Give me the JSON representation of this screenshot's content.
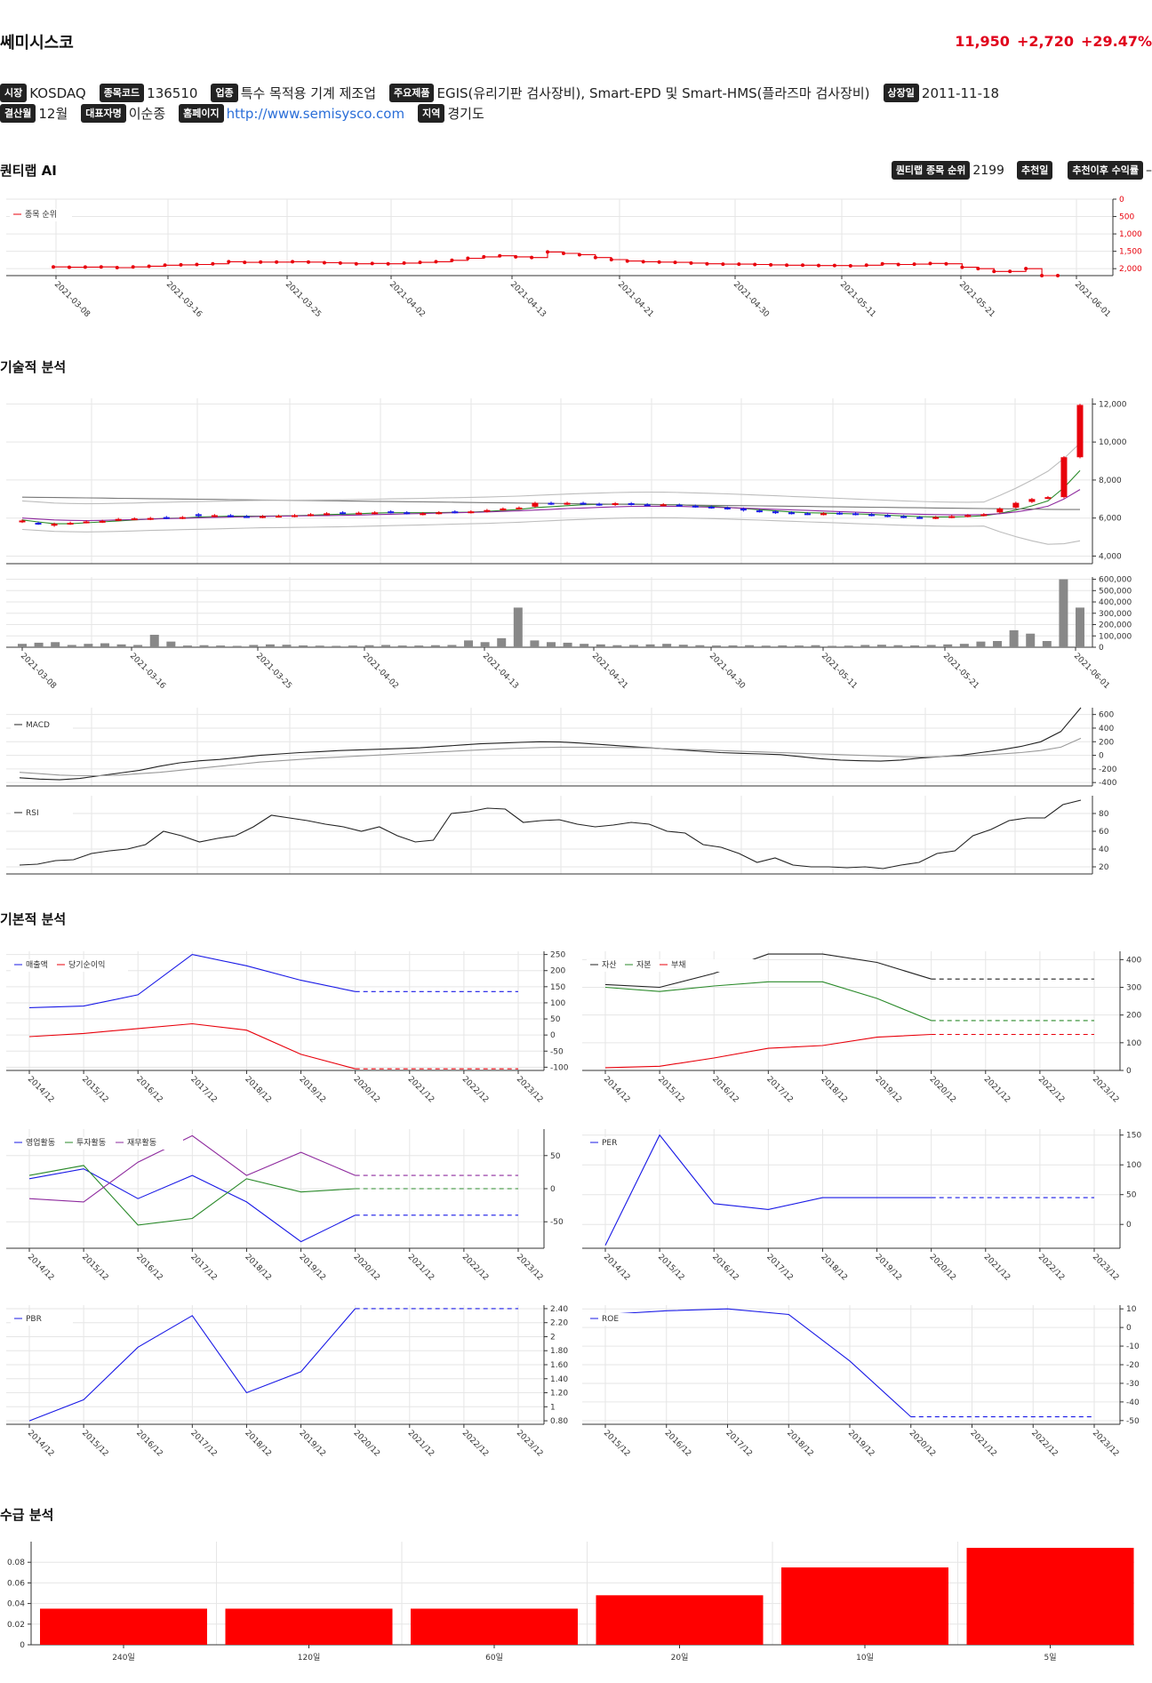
{
  "stock": {
    "name": "쎄미시스코",
    "price": "11,950",
    "change": "+2,720",
    "change_pct": "+29.47%"
  },
  "info": {
    "row1": [
      {
        "label": "시장",
        "value": "KOSDAQ"
      },
      {
        "label": "종목코드",
        "value": "136510"
      },
      {
        "label": "업종",
        "value": "특수 목적용 기계 제조업"
      },
      {
        "label": "주요제품",
        "value": "EGIS(유리기판 검사장비), Smart-EPD 및 Smart-HMS(플라즈마 검사장비)"
      },
      {
        "label": "상장일",
        "value": "2011-11-18"
      }
    ],
    "row2": [
      {
        "label": "결산월",
        "value": "12월"
      },
      {
        "label": "대표자명",
        "value": "이순종"
      },
      {
        "label": "홈페이지",
        "value": "http://www.semisysco.com",
        "link": true
      },
      {
        "label": "지역",
        "value": "경기도"
      }
    ]
  },
  "sections": {
    "ai": "퀀티랩 AI",
    "technical": "기술적 분석",
    "fundamental": "기본적 분석",
    "supply": "수급 분석"
  },
  "ai_bar": {
    "rank_label": "퀀티랩 종목 순위",
    "rank_value": "2199",
    "rec_date_label": "추천일",
    "rec_return_label": "추천이후 수익률",
    "rec_return_value": "–"
  },
  "colors": {
    "red": "#e8000b",
    "blue": "#1919e6",
    "green": "#2a8a2a",
    "purple": "#8e2a9e",
    "black": "#333333",
    "gray": "#777777"
  },
  "dates_axis": [
    "2021-03-08",
    "2021-03-16",
    "2021-03-25",
    "2021-04-02",
    "2021-04-13",
    "2021-04-21",
    "2021-04-30",
    "2021-05-11",
    "2021-05-21",
    "2021-06-01"
  ],
  "year_axis": [
    "2014/12",
    "2015/12",
    "2016/12",
    "2017/12",
    "2018/12",
    "2019/12",
    "2020/12",
    "2021/12",
    "2022/12",
    "2023/12"
  ],
  "year_axis_roe": [
    "2015/12",
    "2016/12",
    "2017/12",
    "2018/12",
    "2019/12",
    "2020/12",
    "2021/12",
    "2022/12",
    "2023/12"
  ],
  "chart_data": [
    {
      "id": "rank",
      "type": "line",
      "legend": [
        "종목 순위"
      ],
      "yticks": [
        "0",
        "500",
        "1,000",
        "1,500",
        "2,000"
      ],
      "ylim": [
        0,
        2200
      ],
      "reversed": true,
      "series": [
        {
          "name": "종목 순위",
          "values": [
            1950,
            1960,
            1955,
            1950,
            1970,
            1950,
            1930,
            1900,
            1890,
            1880,
            1860,
            1800,
            1820,
            1810,
            1810,
            1800,
            1810,
            1830,
            1840,
            1860,
            1850,
            1860,
            1840,
            1820,
            1800,
            1760,
            1700,
            1660,
            1630,
            1660,
            1680,
            1520,
            1560,
            1600,
            1680,
            1740,
            1780,
            1800,
            1810,
            1820,
            1840,
            1860,
            1870,
            1870,
            1880,
            1890,
            1900,
            1900,
            1910,
            1910,
            1920,
            1900,
            1860,
            1880,
            1870,
            1850,
            1860,
            1960,
            2000,
            2080,
            2080,
            2000,
            2200,
            2200
          ]
        }
      ]
    },
    {
      "id": "price",
      "type": "candlestick",
      "yticks": [
        "4,000",
        "6,000",
        "8,000",
        "10,000",
        "12,000"
      ],
      "ylim": [
        3600,
        12300
      ],
      "close": [
        5870,
        5700,
        5700,
        5750,
        5820,
        5850,
        5950,
        5980,
        6000,
        6000,
        6050,
        6100,
        6150,
        6100,
        6080,
        6100,
        6120,
        6150,
        6200,
        6250,
        6250,
        6280,
        6300,
        6300,
        6250,
        6250,
        6300,
        6300,
        6350,
        6420,
        6500,
        6550,
        6800,
        6750,
        6800,
        6750,
        6700,
        6780,
        6720,
        6700,
        6720,
        6660,
        6600,
        6550,
        6500,
        6400,
        6350,
        6280,
        6250,
        6220,
        6250,
        6230,
        6200,
        6150,
        6100,
        6050,
        6020,
        6050,
        6100,
        6150,
        6200,
        6500,
        6800,
        7000,
        7100,
        9200,
        11950
      ],
      "open": [
        5800,
        5750,
        5600,
        5700,
        5780,
        5800,
        5900,
        5950,
        5950,
        6050,
        6000,
        6200,
        6100,
        6150,
        6100,
        6050,
        6100,
        6100,
        6150,
        6200,
        6300,
        6250,
        6250,
        6350,
        6300,
        6200,
        6250,
        6350,
        6300,
        6350,
        6450,
        6500,
        6600,
        6800,
        6750,
        6800,
        6750,
        6700,
        6780,
        6720,
        6680,
        6700,
        6650,
        6600,
        6550,
        6500,
        6400,
        6350,
        6300,
        6250,
        6200,
        6280,
        6250,
        6200,
        6150,
        6100,
        6050,
        6000,
        6050,
        6100,
        6150,
        6300,
        6550,
        6850,
        7050,
        7100,
        9200
      ],
      "ma": [
        [
          5900,
          5800,
          5700,
          5700,
          5750,
          5800,
          5850,
          5900,
          5950,
          5980,
          6000,
          6050,
          6080,
          6100,
          6100,
          6100,
          6110,
          6120,
          6150,
          6180,
          6200,
          6230,
          6260,
          6280,
          6280,
          6280,
          6290,
          6300,
          6310,
          6350,
          6400,
          6450,
          6550,
          6600,
          6650,
          6700,
          6720,
          6730,
          6730,
          6720,
          6710,
          6700,
          6660,
          6620,
          6570,
          6500,
          6440,
          6380,
          6320,
          6280,
          6260,
          6240,
          6220,
          6190,
          6150,
          6110,
          6080,
          6060,
          6060,
          6080,
          6120,
          6240,
          6420,
          6640,
          6900,
          7600,
          8500
        ],
        [
          6000,
          5950,
          5900,
          5880,
          5870,
          5880,
          5900,
          5920,
          5950,
          5970,
          5990,
          6010,
          6030,
          6050,
          6070,
          6090,
          6100,
          6110,
          6120,
          6130,
          6140,
          6160,
          6180,
          6200,
          6220,
          6240,
          6260,
          6280,
          6300,
          6320,
          6350,
          6380,
          6420,
          6460,
          6500,
          6530,
          6560,
          6590,
          6610,
          6620,
          6620,
          6610,
          6590,
          6570,
          6550,
          6520,
          6490,
          6460,
          6430,
          6400,
          6370,
          6340,
          6310,
          6280,
          6250,
          6220,
          6200,
          6180,
          6170,
          6170,
          6180,
          6230,
          6320,
          6450,
          6620,
          7000,
          7500
        ],
        [
          7100,
          7090,
          7080,
          7070,
          7060,
          7050,
          7040,
          7030,
          7020,
          7010,
          7000,
          6990,
          6980,
          6970,
          6960,
          6950,
          6940,
          6930,
          6920,
          6910,
          6900,
          6890,
          6880,
          6870,
          6860,
          6850,
          6840,
          6830,
          6820,
          6810,
          6800,
          6790,
          6780,
          6770,
          6760,
          6750,
          6740,
          6730,
          6720,
          6710,
          6700,
          6690,
          6680,
          6670,
          6660,
          6650,
          6640,
          6630,
          6620,
          6610,
          6600,
          6590,
          6580,
          6570,
          6560,
          6550,
          6540,
          6530,
          6520,
          6510,
          6500,
          6490,
          6480,
          6470,
          6460,
          6450,
          6450
        ]
      ]
    },
    {
      "id": "volume",
      "type": "bar",
      "yticks": [
        "0",
        "100,000",
        "200,000",
        "300,000",
        "400,000",
        "500,000",
        "600,000"
      ],
      "ylim": [
        0,
        620000
      ],
      "values": [
        30000,
        40000,
        45000,
        20000,
        30000,
        35000,
        25000,
        20000,
        110000,
        50000,
        15000,
        18000,
        15000,
        12000,
        20000,
        25000,
        22000,
        16000,
        14000,
        12000,
        15000,
        18000,
        20000,
        15000,
        15000,
        18000,
        20000,
        60000,
        45000,
        80000,
        350000,
        60000,
        45000,
        40000,
        30000,
        25000,
        18000,
        20000,
        25000,
        30000,
        22000,
        18000,
        15000,
        16000,
        18000,
        14000,
        16000,
        15000,
        18000,
        12000,
        14000,
        20000,
        22000,
        18000,
        16000,
        20000,
        25000,
        30000,
        50000,
        55000,
        150000,
        120000,
        55000,
        600000,
        350000
      ]
    },
    {
      "id": "macd",
      "type": "line",
      "legend": [
        "MACD"
      ],
      "yticks": [
        "-400",
        "-200",
        "0",
        "200",
        "400",
        "600"
      ],
      "ylim": [
        -450,
        700
      ],
      "series": [
        {
          "name": "MACD",
          "values": [
            -330,
            -350,
            -360,
            -340,
            -300,
            -260,
            -220,
            -160,
            -110,
            -80,
            -60,
            -30,
            0,
            20,
            40,
            55,
            70,
            80,
            90,
            100,
            110,
            130,
            150,
            170,
            180,
            190,
            200,
            195,
            180,
            160,
            140,
            120,
            100,
            80,
            60,
            40,
            30,
            20,
            10,
            -20,
            -50,
            -70,
            -80,
            -85,
            -70,
            -40,
            -20,
            0,
            40,
            80,
            130,
            200,
            350,
            700
          ]
        },
        {
          "values": [
            -250,
            -270,
            -290,
            -300,
            -300,
            -290,
            -270,
            -250,
            -220,
            -190,
            -160,
            -130,
            -100,
            -80,
            -60,
            -40,
            -25,
            -10,
            5,
            20,
            35,
            50,
            65,
            80,
            95,
            105,
            115,
            120,
            120,
            118,
            115,
            110,
            100,
            90,
            80,
            70,
            60,
            50,
            40,
            30,
            20,
            10,
            0,
            -10,
            -20,
            -25,
            -20,
            -10,
            0,
            20,
            40,
            70,
            120,
            250
          ]
        }
      ]
    },
    {
      "id": "rsi",
      "type": "line",
      "legend": [
        "RSI"
      ],
      "yticks": [
        "20",
        "40",
        "60",
        "80"
      ],
      "ylim": [
        12,
        100
      ],
      "series": [
        {
          "name": "RSI",
          "values": [
            22,
            23,
            27,
            28,
            35,
            38,
            40,
            45,
            60,
            55,
            48,
            52,
            55,
            65,
            78,
            75,
            72,
            68,
            65,
            60,
            65,
            55,
            48,
            50,
            80,
            82,
            86,
            85,
            70,
            72,
            73,
            68,
            65,
            67,
            70,
            68,
            60,
            58,
            45,
            42,
            35,
            25,
            30,
            22,
            20,
            20,
            19,
            20,
            18,
            22,
            25,
            35,
            38,
            55,
            62,
            72,
            75,
            75,
            90,
            95
          ]
        }
      ]
    },
    {
      "id": "sales",
      "type": "line",
      "legend": [
        "매출액",
        "당기순이익"
      ],
      "yticks": [
        "-100",
        "-50",
        "0",
        "50",
        "100",
        "150",
        "200",
        "250"
      ],
      "ylim": [
        -110,
        260
      ],
      "series": [
        {
          "name": "매출액",
          "values": [
            85,
            90,
            125,
            250,
            215,
            170,
            135
          ],
          "forecast": 135
        },
        {
          "name": "당기순이익",
          "values": [
            -5,
            5,
            20,
            35,
            15,
            -60,
            -105
          ],
          "forecast": -105
        }
      ]
    },
    {
      "id": "balance",
      "type": "line",
      "legend": [
        "자산",
        "자본",
        "부채"
      ],
      "yticks": [
        "0",
        "100",
        "200",
        "300",
        "400"
      ],
      "ylim": [
        0,
        430
      ],
      "series": [
        {
          "name": "자산",
          "values": [
            310,
            300,
            350,
            420,
            420,
            390,
            330
          ],
          "forecast": 330
        },
        {
          "name": "자본",
          "values": [
            300,
            285,
            305,
            320,
            320,
            260,
            180
          ],
          "forecast": 180
        },
        {
          "name": "부채",
          "values": [
            10,
            15,
            45,
            80,
            90,
            120,
            130
          ],
          "forecast": 130
        }
      ]
    },
    {
      "id": "cashflow",
      "type": "line",
      "legend": [
        "영업활동",
        "투자활동",
        "재무활동"
      ],
      "yticks": [
        "-50",
        "0",
        "50"
      ],
      "ylim": [
        -90,
        90
      ],
      "series": [
        {
          "name": "영업활동",
          "values": [
            15,
            30,
            -15,
            20,
            -20,
            -80,
            -40
          ],
          "forecast": -40
        },
        {
          "name": "투자활동",
          "values": [
            20,
            35,
            -55,
            -45,
            15,
            -5,
            0
          ],
          "forecast": 0
        },
        {
          "name": "재무활동",
          "values": [
            -15,
            -20,
            40,
            80,
            20,
            55,
            20
          ],
          "forecast": 20
        }
      ]
    },
    {
      "id": "per",
      "type": "line",
      "legend": [
        "PER"
      ],
      "yticks": [
        "0",
        "50",
        "100",
        "150"
      ],
      "ylim": [
        -40,
        160
      ],
      "series": [
        {
          "name": "PER",
          "values": [
            -35,
            150,
            35,
            25,
            45,
            45,
            45
          ],
          "forecast": 45
        }
      ]
    },
    {
      "id": "pbr",
      "type": "line",
      "legend": [
        "PBR"
      ],
      "yticks": [
        "0.80",
        "1",
        "1.20",
        "1.40",
        "1.60",
        "1.80",
        "2",
        "2.20",
        "2.40"
      ],
      "ylim": [
        0.75,
        2.45
      ],
      "series": [
        {
          "name": "PBR",
          "values": [
            0.8,
            1.1,
            1.85,
            2.3,
            1.2,
            1.5,
            2.4
          ],
          "forecast": 2.4
        }
      ]
    },
    {
      "id": "roe",
      "type": "line",
      "legend": [
        "ROE"
      ],
      "yticks": [
        "-50",
        "-40",
        "-30",
        "-20",
        "-10",
        "0",
        "10"
      ],
      "ylim": [
        -52,
        12
      ],
      "series": [
        {
          "name": "ROE",
          "values": [
            7,
            9,
            10,
            7,
            -18,
            -48
          ],
          "forecast": -48
        }
      ]
    },
    {
      "id": "supply",
      "type": "bar",
      "categories": [
        "240일",
        "120일",
        "60일",
        "20일",
        "10일",
        "5일"
      ],
      "yticks": [
        "0",
        "0.02",
        "0.04",
        "0.06",
        "0.08"
      ],
      "ylim": [
        0,
        0.1
      ],
      "values": [
        0.035,
        0.035,
        0.035,
        0.048,
        0.075,
        0.094
      ]
    }
  ]
}
